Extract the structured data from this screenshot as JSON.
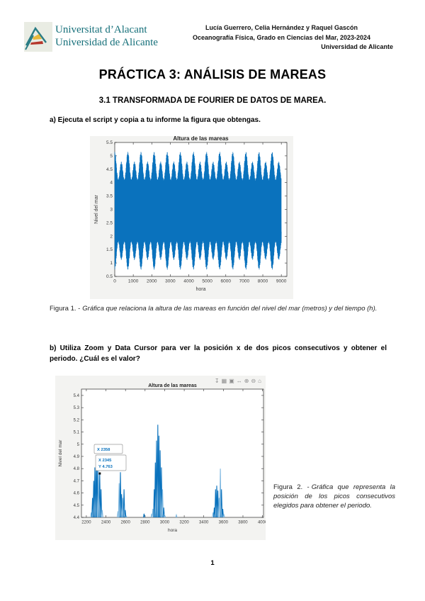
{
  "colors": {
    "brand_teal": "#16707a",
    "matlab_blue": "#0a72bd",
    "matlab_blue_light": "#7db7e0",
    "figure_bg": "#f3f3f1",
    "axis_color": "#3c3c3c"
  },
  "header": {
    "logo_name": "universidad-de-alicante-logo",
    "wordmark_line1": "Universitat d’Alacant",
    "wordmark_line2": "Universidad de Alicante",
    "authors": "Lucía Guerrero, Celia Hernández y Raquel Gascón",
    "course": "Oceanografía Física, Grado en Ciencias del Mar, 2023-2024",
    "institution": "Universidad de Alicante"
  },
  "document": {
    "title": "PRÁCTICA 3: ANÁLISIS DE MAREAS",
    "section": "3.1 TRANSFORMADA DE FOURIER DE DATOS DE MAREA.",
    "paragraph_a": "a) Ejecuta el script y copia a tu informe la figura que obtengas.",
    "paragraph_b": "b) Utiliza Zoom y Data Cursor para ver la posición x de dos picos consecutivos y obtener el periodo. ¿Cuál es el valor?",
    "caption1": {
      "label": "Figura 1. -",
      "text": "Gráfica que relaciona la altura de las mareas en función del nivel del mar (metros) y del tiempo (h)."
    },
    "caption2": {
      "label": "Figura 2. -",
      "text": "Gráfica que representa la posición de los picos consecutivos elegidos para obtener el periodo."
    },
    "page_number": "1"
  },
  "chart_data": [
    {
      "id": "figura1",
      "type": "line",
      "title": "Altura de las mareas",
      "xlabel": "hora",
      "ylabel": "Nivel del mar",
      "xlim": [
        0,
        9300
      ],
      "ylim": [
        0.5,
        5.5
      ],
      "xticks": [
        0,
        1000,
        2000,
        3000,
        4000,
        5000,
        6000,
        7000,
        8000,
        9000
      ],
      "yticks": [
        0.5,
        1,
        1.5,
        2,
        2.5,
        3,
        3.5,
        4,
        4.5,
        5,
        5.5
      ],
      "grid": false,
      "line_color": "#0a72bd",
      "signal": {
        "description": "Dense semidiurnal tide record, 0-9000 h, with spring-neap envelope modulation; level oscillates between about 0.75 m and 5.15 m around a mean of 2.95 m.",
        "mean_level": 2.95,
        "t_start": 0,
        "t_end": 9000,
        "sample_step_h": 1.5,
        "carrier_period_h": 12.42,
        "envelope": [
          {
            "name": "base-amplitude",
            "period_h": 0,
            "amplitude": 1.6
          },
          {
            "name": "spring-neap-modulation",
            "period_h": 354.37,
            "amplitude": 0.42
          },
          {
            "name": "monthly-modulation",
            "period_h": 708.74,
            "amplitude": 0.18
          }
        ]
      }
    },
    {
      "id": "figura2",
      "type": "line",
      "title": "Altura de las mareas",
      "xlabel": "hora",
      "ylabel": "Nivel del mar",
      "xlim": [
        2150,
        4010
      ],
      "ylim": [
        4.4,
        5.452
      ],
      "xticks": [
        2200,
        2400,
        2600,
        2800,
        3000,
        3200,
        3400,
        3600,
        3800,
        4000
      ],
      "yticks": [
        4.4,
        4.5,
        4.6,
        4.7,
        4.8,
        4.9,
        5,
        5.1,
        5.2,
        5.3,
        5.4
      ],
      "grid": false,
      "line_color": "#0a72bd",
      "peaks": [
        {
          "x": 2250,
          "y": 4.44,
          "light": true
        },
        {
          "x": 2263,
          "y": 4.56,
          "light": false
        },
        {
          "x": 2275,
          "y": 4.7,
          "light": false
        },
        {
          "x": 2287,
          "y": 4.81,
          "light": false
        },
        {
          "x": 2300,
          "y": 4.86,
          "light": false
        },
        {
          "x": 2312,
          "y": 4.84,
          "light": false
        },
        {
          "x": 2325,
          "y": 4.8,
          "light": true
        },
        {
          "x": 2337,
          "y": 4.76,
          "light": false
        },
        {
          "x": 2350,
          "y": 4.63,
          "light": false
        },
        {
          "x": 2362,
          "y": 4.46,
          "light": true
        },
        {
          "x": 2523,
          "y": 4.45,
          "light": true
        },
        {
          "x": 2535,
          "y": 4.68,
          "light": true
        },
        {
          "x": 2548,
          "y": 4.77,
          "light": false
        },
        {
          "x": 2560,
          "y": 4.59,
          "light": false
        },
        {
          "x": 2572,
          "y": 4.56,
          "light": true
        },
        {
          "x": 2585,
          "y": 4.63,
          "light": false
        },
        {
          "x": 2597,
          "y": 4.46,
          "light": false
        },
        {
          "x": 2609,
          "y": 4.41,
          "light": true
        },
        {
          "x": 2790,
          "y": 4.43,
          "light": false
        },
        {
          "x": 2868,
          "y": 4.43,
          "light": true
        },
        {
          "x": 2880,
          "y": 4.47,
          "light": true
        },
        {
          "x": 2893,
          "y": 4.63,
          "light": false
        },
        {
          "x": 2905,
          "y": 4.85,
          "light": false
        },
        {
          "x": 2917,
          "y": 5.03,
          "light": false
        },
        {
          "x": 2930,
          "y": 5.16,
          "light": false
        },
        {
          "x": 2942,
          "y": 5.07,
          "light": false
        },
        {
          "x": 2954,
          "y": 4.95,
          "light": false
        },
        {
          "x": 2967,
          "y": 4.81,
          "light": false
        },
        {
          "x": 2979,
          "y": 4.63,
          "light": true
        },
        {
          "x": 2991,
          "y": 4.48,
          "light": false
        },
        {
          "x": 3004,
          "y": 4.41,
          "light": true
        },
        {
          "x": 3120,
          "y": 4.42,
          "light": true
        },
        {
          "x": 3495,
          "y": 4.44,
          "light": true
        },
        {
          "x": 3507,
          "y": 4.48,
          "light": false
        },
        {
          "x": 3520,
          "y": 4.63,
          "light": false
        },
        {
          "x": 3532,
          "y": 4.66,
          "light": false
        },
        {
          "x": 3544,
          "y": 4.62,
          "light": false
        },
        {
          "x": 3557,
          "y": 4.56,
          "light": true
        },
        {
          "x": 3569,
          "y": 4.8,
          "light": true
        },
        {
          "x": 3581,
          "y": 4.63,
          "light": false
        },
        {
          "x": 3594,
          "y": 4.47,
          "light": false
        },
        {
          "x": 3606,
          "y": 4.42,
          "light": true
        }
      ],
      "datatips": [
        {
          "lines": [
            "X 2358"
          ],
          "anchor": {
            "x": 2350,
            "y": 4.63
          }
        },
        {
          "lines": [
            "X 2345",
            "Y 4.763"
          ],
          "anchor": {
            "x": 2337,
            "y": 4.76
          }
        }
      ],
      "toolbar": [
        {
          "name": "export-icon",
          "glyph": "↧"
        },
        {
          "name": "brush-icon",
          "glyph": "▦"
        },
        {
          "name": "datatip-icon",
          "glyph": "▣"
        },
        {
          "name": "pan-icon",
          "glyph": "↔"
        },
        {
          "name": "zoom-in-icon",
          "glyph": "⊕"
        },
        {
          "name": "zoom-out-icon",
          "glyph": "⊖"
        },
        {
          "name": "restore-view-icon",
          "glyph": "⌂"
        }
      ]
    }
  ]
}
